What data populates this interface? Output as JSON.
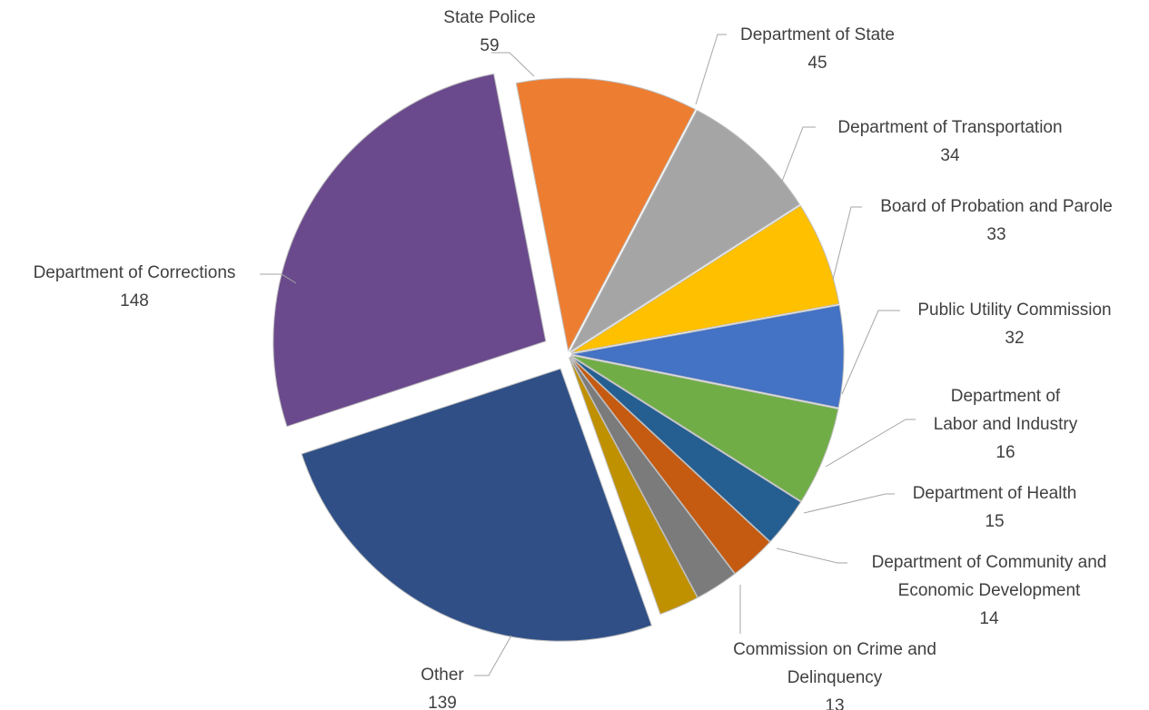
{
  "chart_data": {
    "type": "pie",
    "exploded": true,
    "slices": [
      {
        "label": "State Police",
        "label_lines": [
          "State Police"
        ],
        "value": 59,
        "color": "#ED7D31"
      },
      {
        "label": "Department of State",
        "label_lines": [
          "Department of State"
        ],
        "value": 45,
        "color": "#A5A5A5"
      },
      {
        "label": "Department of Transportation",
        "label_lines": [
          "Department of Transportation"
        ],
        "value": 34,
        "color": "#FFC000"
      },
      {
        "label": "Board of Probation and Parole",
        "label_lines": [
          "Board of Probation and Parole"
        ],
        "value": 33,
        "color": "#4472C4"
      },
      {
        "label": "Public Utility Commission",
        "label_lines": [
          "Public Utility Commission"
        ],
        "value": 32,
        "color": "#70AD47"
      },
      {
        "label": "Department of Labor and Industry",
        "label_lines": [
          "Department of",
          "Labor and Industry"
        ],
        "value": 16,
        "color": "#255E91"
      },
      {
        "label": "Department of Health",
        "label_lines": [
          "Department of Health"
        ],
        "value": 15,
        "color": "#C55A11"
      },
      {
        "label": "Department of Community and Economic Development",
        "label_lines": [
          "Department of Community and",
          "Economic Development"
        ],
        "value": 14,
        "color": "#7B7B7B"
      },
      {
        "label": "Commission on Crime and Delinquency",
        "label_lines": [
          "Commission on Crime and",
          "Delinquency"
        ],
        "value": 13,
        "color": "#BF9000"
      },
      {
        "label": "Other",
        "label_lines": [
          "Other"
        ],
        "value": 139,
        "color": "#2F4F86"
      },
      {
        "label": "Department of Corrections",
        "label_lines": [
          "Department of Corrections"
        ],
        "value": 148,
        "color": "#6A4A8C"
      }
    ]
  }
}
